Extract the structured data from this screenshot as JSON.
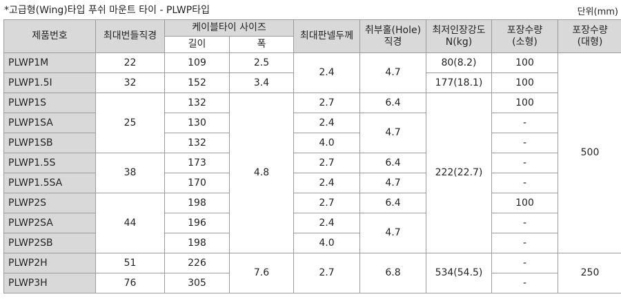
{
  "caption": "*고급형(Wing)타입 푸쉬 마운트 타이 - PLWP타입",
  "unit": "단위(mm)",
  "table": {
    "header": [
      [
        "제품번호",
        "최대번들직경",
        "케이블타이 사이즈",
        "최대판넬두께",
        "취부홀(Hole)\n직경",
        "최저인장강도\nN(kg)",
        "포장수량\n(소형)",
        "포장수량\n(대형)"
      ],
      [
        "길이",
        "폭"
      ]
    ],
    "rows": [
      [
        "PLWP1M",
        "22",
        "109",
        "2.5",
        "2.4",
        "4.7",
        "80(8.2)",
        "100",
        "500"
      ],
      [
        "PLWP1.5I",
        "32",
        "152",
        "3.4",
        "177(18.1)",
        "100"
      ],
      [
        "PLWP1S",
        "25",
        "132",
        "4.8",
        "2.7",
        "6.4",
        "222(22.7)",
        "100"
      ],
      [
        "PLWP1SA",
        "130",
        "2.4",
        "4.7",
        "-"
      ],
      [
        "PLWP1SB",
        "132",
        "4.0",
        "-"
      ],
      [
        "PLWP1.5S",
        "38",
        "173",
        "2.7",
        "6.4",
        "-"
      ],
      [
        "PLWP1.5SA",
        "170",
        "2.4",
        "4.7",
        "-"
      ],
      [
        "PLWP2S",
        "44",
        "198",
        "2.7",
        "6.4",
        "100"
      ],
      [
        "PLWP2SA",
        "196",
        "2.4",
        "4.7",
        "-"
      ],
      [
        "PLWP2SB",
        "198",
        "4.0",
        "-"
      ],
      [
        "PLWP2H",
        "51",
        "226",
        "7.6",
        "2.7",
        "6.8",
        "534(54.5)",
        "-",
        "250"
      ],
      [
        "PLWP3H",
        "76",
        "305",
        "-"
      ]
    ]
  }
}
